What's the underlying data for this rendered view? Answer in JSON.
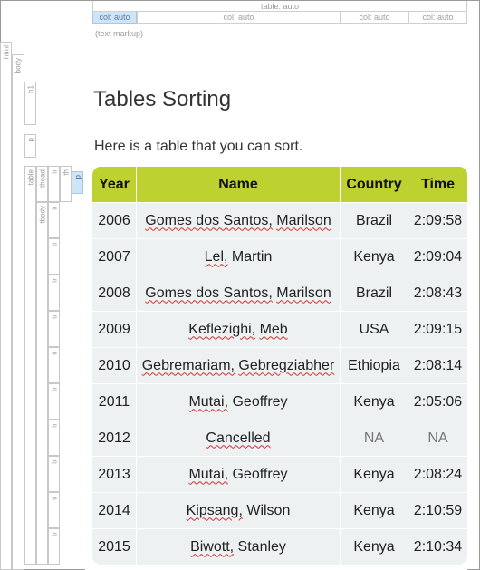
{
  "ruler": {
    "table_label": "table: auto",
    "columns": [
      "col: auto",
      "col: auto",
      "col: auto",
      "col: auto"
    ],
    "markup_note": "(text markup)"
  },
  "tags": {
    "html": "html",
    "body": "body",
    "h1": "h1",
    "p": "p",
    "table": "table",
    "thead": "thead",
    "tbody": "tbody",
    "tr": "tr",
    "th": "th",
    "th_p": "p"
  },
  "page": {
    "title": "Tables Sorting",
    "intro": "Here is a table that you can sort."
  },
  "table": {
    "headers": [
      "Year",
      "Name",
      "Country",
      "Time"
    ],
    "rows": [
      {
        "year": "2006",
        "name_a": "Gomes dos Santos,",
        "name_b": "Marilson",
        "country": "Brazil",
        "time": "2:09:58"
      },
      {
        "year": "2007",
        "name_a": "Lel,",
        "name_b": "Martin",
        "country": "Kenya",
        "time": "2:09:04"
      },
      {
        "year": "2008",
        "name_a": "Gomes dos Santos,",
        "name_b": "Marilson",
        "country": "Brazil",
        "time": "2:08:43"
      },
      {
        "year": "2009",
        "name_a": "Keflezighi,",
        "name_b": "Meb",
        "country": "USA",
        "time": "2:09:15"
      },
      {
        "year": "2010",
        "name_a": "Gebremariam,",
        "name_b": "Gebregziabher",
        "country": "Ethiopia",
        "time": "2:08:14"
      },
      {
        "year": "2011",
        "name_a": "Mutai,",
        "name_b": "Geoffrey",
        "country": "Kenya",
        "time": "2:05:06"
      },
      {
        "year": "2012",
        "name_a": "Cancelled",
        "name_b": "",
        "country": "NA",
        "time": "NA"
      },
      {
        "year": "2013",
        "name_a": "Mutai,",
        "name_b": "Geoffrey",
        "country": "Kenya",
        "time": "2:08:24"
      },
      {
        "year": "2014",
        "name_a": "Kipsang,",
        "name_b": "Wilson",
        "country": "Kenya",
        "time": "2:10:59"
      },
      {
        "year": "2015",
        "name_a": "Biwott,",
        "name_b": "Stanley",
        "country": "Kenya",
        "time": "2:10:34"
      }
    ]
  }
}
